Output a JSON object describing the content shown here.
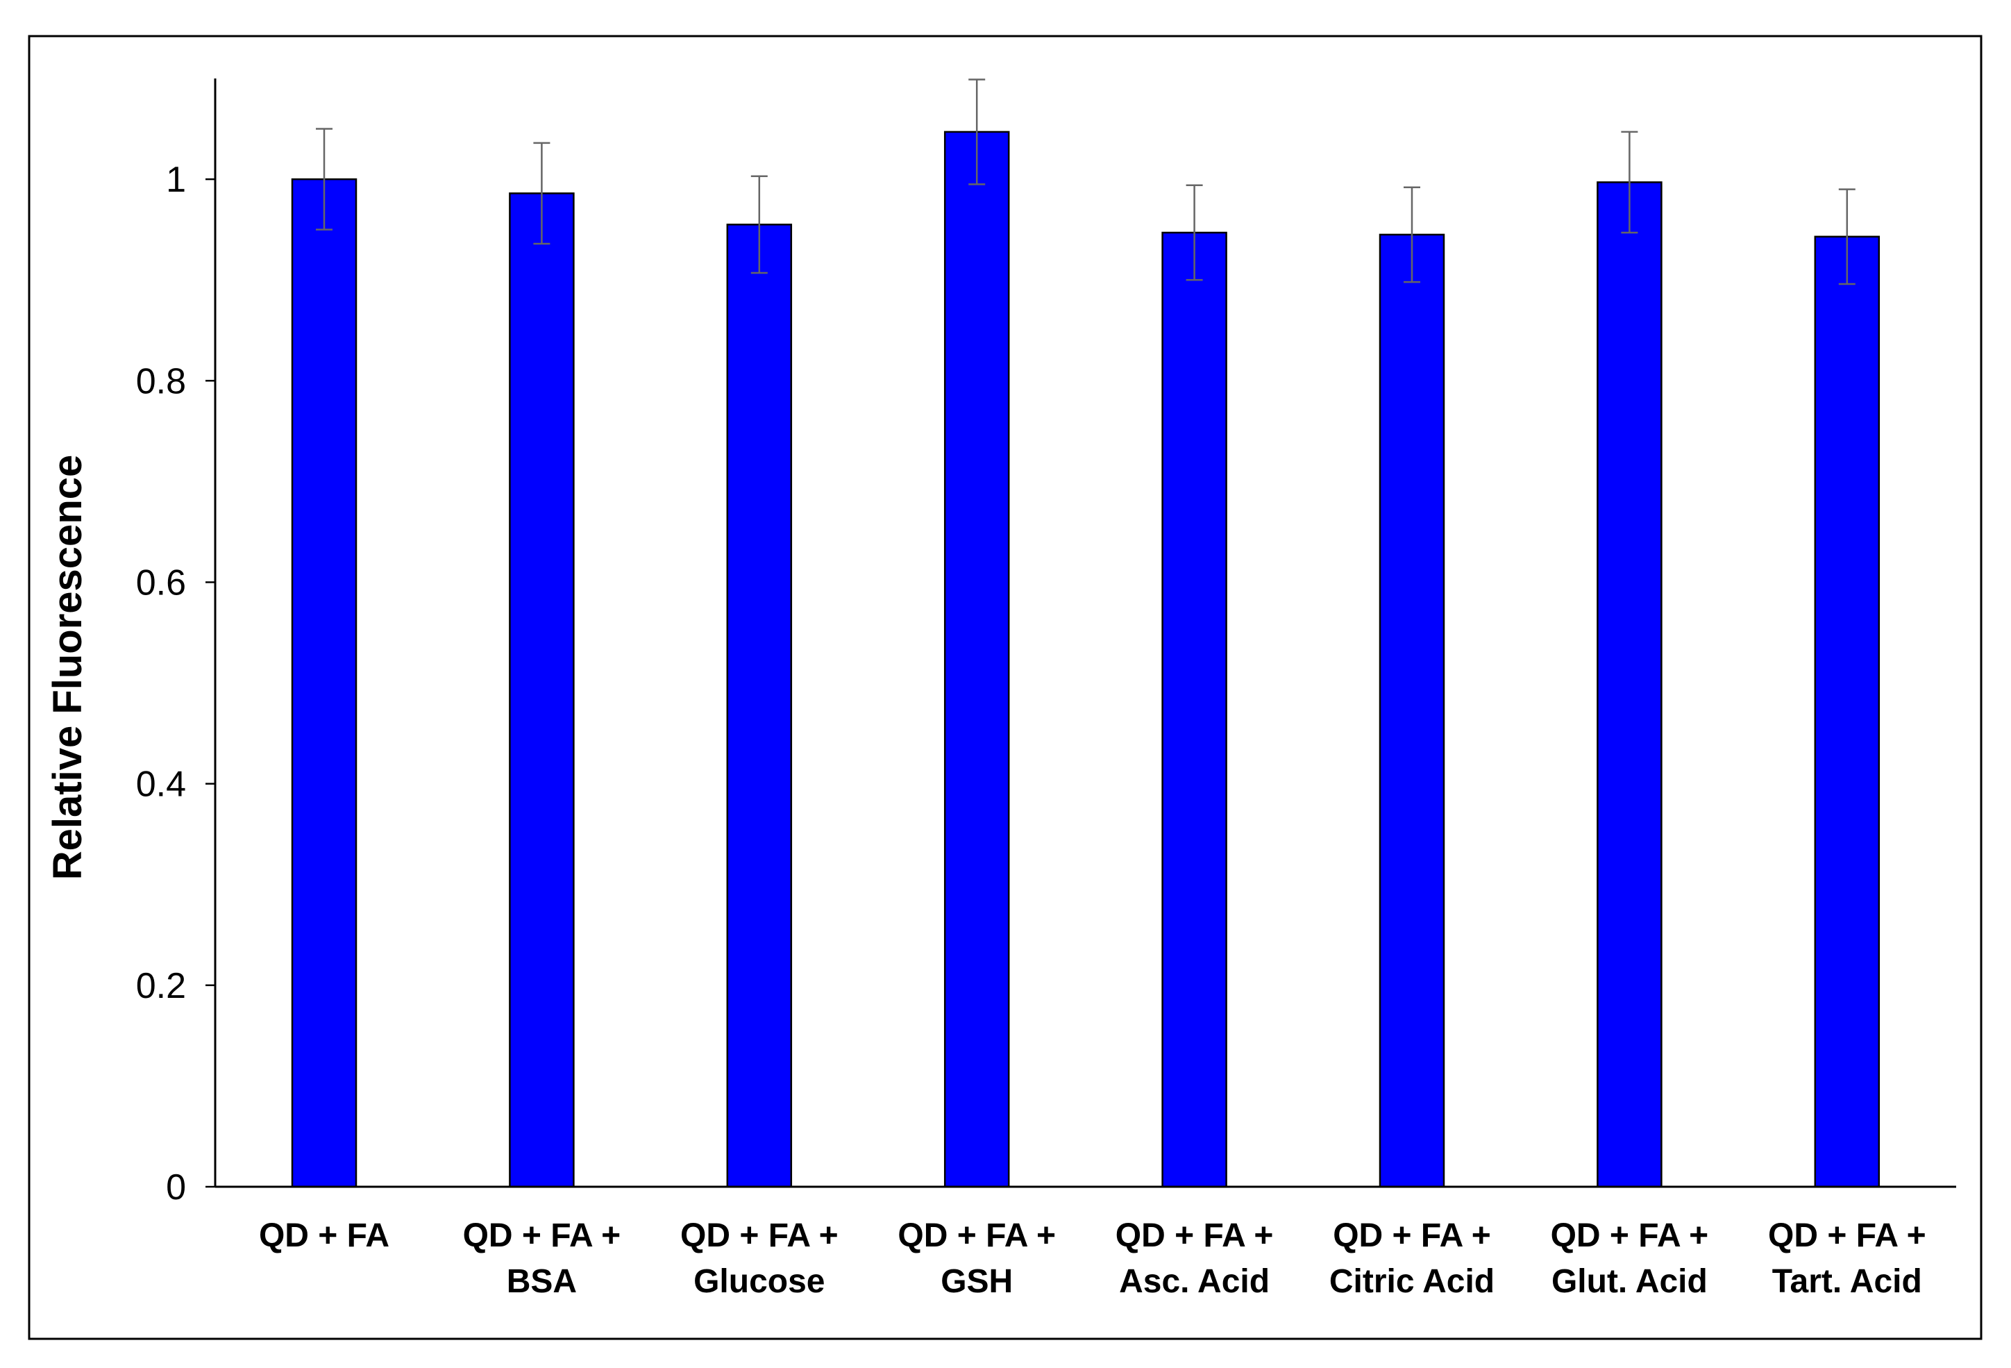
{
  "chart_data": {
    "type": "bar",
    "title": "",
    "xlabel": "",
    "ylabel": "Relative Fluorescence",
    "ylim": [
      0,
      1.1
    ],
    "yticks": [
      {
        "value": 0,
        "label": "0"
      },
      {
        "value": 0.2,
        "label": "0.2"
      },
      {
        "value": 0.4,
        "label": "0.4"
      },
      {
        "value": 0.6,
        "label": "0.6"
      },
      {
        "value": 0.8,
        "label": "0.8"
      },
      {
        "value": 1,
        "label": "1"
      }
    ],
    "categories": [
      [
        "QD + FA"
      ],
      [
        "QD + FA +",
        "BSA"
      ],
      [
        "QD + FA +",
        "Glucose"
      ],
      [
        "QD + FA +",
        "GSH"
      ],
      [
        "QD + FA +",
        "Asc. Acid"
      ],
      [
        "QD + FA +",
        "Citric Acid"
      ],
      [
        "QD + FA +",
        "Glut. Acid"
      ],
      [
        "QD + FA +",
        "Tart. Acid"
      ]
    ],
    "values": [
      1.0,
      0.986,
      0.955,
      1.047,
      0.947,
      0.945,
      0.997,
      0.943
    ],
    "errors": [
      0.05,
      0.05,
      0.048,
      0.052,
      0.047,
      0.047,
      0.05,
      0.047
    ],
    "bar_color": "#0000ff",
    "error_color": "#666666",
    "grid": false,
    "legend": "none"
  }
}
